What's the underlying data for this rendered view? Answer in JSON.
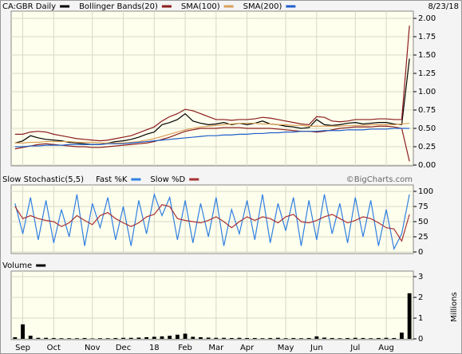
{
  "chart_data": [
    {
      "type": "line",
      "date_label": "8/23/18",
      "series": [
        {
          "name": "CA:GBR Daily",
          "color": "#000000",
          "values": [
            0.3,
            0.33,
            0.4,
            0.37,
            0.35,
            0.34,
            0.33,
            0.31,
            0.3,
            0.29,
            0.28,
            0.28,
            0.3,
            0.32,
            0.33,
            0.35,
            0.38,
            0.42,
            0.45,
            0.55,
            0.58,
            0.62,
            0.7,
            0.6,
            0.57,
            0.55,
            0.56,
            0.58,
            0.55,
            0.57,
            0.55,
            0.57,
            0.6,
            0.56,
            0.55,
            0.53,
            0.52,
            0.5,
            0.51,
            0.62,
            0.55,
            0.54,
            0.55,
            0.57,
            0.58,
            0.56,
            0.57,
            0.58,
            0.58,
            0.56,
            0.55,
            1.45
          ]
        },
        {
          "name": "Bollinger Bands(20)",
          "color": "#8b1c1c",
          "values": [
            0.42,
            0.42,
            0.45,
            0.46,
            0.45,
            0.42,
            0.4,
            0.38,
            0.36,
            0.35,
            0.34,
            0.33,
            0.34,
            0.36,
            0.38,
            0.4,
            0.44,
            0.48,
            0.52,
            0.6,
            0.66,
            0.7,
            0.76,
            0.74,
            0.7,
            0.66,
            0.62,
            0.62,
            0.61,
            0.62,
            0.62,
            0.63,
            0.65,
            0.64,
            0.62,
            0.6,
            0.58,
            0.56,
            0.55,
            0.66,
            0.65,
            0.6,
            0.59,
            0.6,
            0.62,
            0.62,
            0.62,
            0.63,
            0.63,
            0.62,
            0.62,
            1.9
          ],
          "lower": [
            0.22,
            0.24,
            0.26,
            0.28,
            0.29,
            0.28,
            0.27,
            0.26,
            0.25,
            0.25,
            0.24,
            0.24,
            0.25,
            0.26,
            0.27,
            0.28,
            0.29,
            0.3,
            0.32,
            0.35,
            0.38,
            0.42,
            0.46,
            0.48,
            0.5,
            0.5,
            0.5,
            0.51,
            0.51,
            0.51,
            0.5,
            0.5,
            0.5,
            0.5,
            0.49,
            0.48,
            0.47,
            0.46,
            0.46,
            0.45,
            0.46,
            0.48,
            0.5,
            0.51,
            0.52,
            0.52,
            0.52,
            0.53,
            0.53,
            0.52,
            0.5,
            0.05
          ]
        },
        {
          "name": "SMA(100)",
          "color": "#d9a05a",
          "values": [
            0.3,
            0.3,
            0.31,
            0.31,
            0.32,
            0.32,
            0.32,
            0.32,
            0.31,
            0.31,
            0.31,
            0.3,
            0.3,
            0.3,
            0.3,
            0.31,
            0.32,
            0.34,
            0.36,
            0.39,
            0.42,
            0.45,
            0.48,
            0.5,
            0.52,
            0.53,
            0.54,
            0.55,
            0.56,
            0.57,
            0.57,
            0.57,
            0.56,
            0.56,
            0.55,
            0.55,
            0.54,
            0.54,
            0.53,
            0.53,
            0.53,
            0.53,
            0.53,
            0.54,
            0.54,
            0.54,
            0.55,
            0.55,
            0.55,
            0.55,
            0.56,
            0.57
          ]
        },
        {
          "name": "SMA(200)",
          "color": "#1f5fcc",
          "values": [
            0.25,
            0.25,
            0.26,
            0.26,
            0.27,
            0.27,
            0.27,
            0.28,
            0.28,
            0.28,
            0.28,
            0.28,
            0.29,
            0.29,
            0.29,
            0.3,
            0.31,
            0.32,
            0.33,
            0.34,
            0.35,
            0.36,
            0.37,
            0.38,
            0.39,
            0.4,
            0.4,
            0.41,
            0.41,
            0.42,
            0.42,
            0.43,
            0.43,
            0.44,
            0.44,
            0.45,
            0.45,
            0.46,
            0.46,
            0.46,
            0.47,
            0.47,
            0.47,
            0.48,
            0.48,
            0.48,
            0.49,
            0.49,
            0.49,
            0.5,
            0.5,
            0.5
          ]
        }
      ],
      "ylim": [
        0,
        2
      ],
      "yticks": [
        {
          "value": 0,
          "label": "0.00"
        },
        {
          "value": 0.25,
          "label": "0.25"
        },
        {
          "value": 0.5,
          "label": "0.50"
        },
        {
          "value": 0.75,
          "label": "0.75"
        },
        {
          "value": 1,
          "label": "1.00"
        },
        {
          "value": 1.25,
          "label": "1.25"
        },
        {
          "value": 1.5,
          "label": "1.50"
        },
        {
          "value": 1.75,
          "label": "1.75"
        },
        {
          "value": 2,
          "label": "2.00"
        }
      ],
      "grid": true
    },
    {
      "type": "line",
      "title": "Slow Stochastic(5,5)",
      "watermark": "©BigCharts.com",
      "series": [
        {
          "name": "Fast %K",
          "color": "#2f7fe0",
          "values": [
            80,
            30,
            90,
            20,
            85,
            15,
            70,
            25,
            95,
            10,
            80,
            40,
            90,
            20,
            75,
            10,
            85,
            30,
            95,
            60,
            90,
            20,
            85,
            15,
            80,
            25,
            90,
            10,
            70,
            30,
            85,
            20,
            95,
            15,
            80,
            35,
            90,
            10,
            85,
            20,
            95,
            30,
            80,
            15,
            90,
            25,
            85,
            10,
            70,
            5,
            30,
            95
          ]
        },
        {
          "name": "Slow %D",
          "color": "#a83232",
          "values": [
            75,
            55,
            60,
            55,
            52,
            50,
            42,
            48,
            60,
            52,
            45,
            60,
            65,
            55,
            48,
            42,
            48,
            58,
            62,
            78,
            75,
            55,
            52,
            50,
            48,
            52,
            58,
            50,
            40,
            50,
            58,
            52,
            58,
            55,
            48,
            58,
            62,
            50,
            48,
            52,
            58,
            62,
            55,
            48,
            52,
            58,
            55,
            48,
            40,
            38,
            18,
            62
          ]
        }
      ],
      "ylim": [
        0,
        100
      ],
      "yticks": [
        0,
        25,
        50,
        75,
        100
      ],
      "grid": true
    },
    {
      "type": "bar",
      "title": "Volume",
      "y_label": "Millions",
      "color": "#000000",
      "categories": [
        null,
        "Sep",
        null,
        null,
        null,
        "Oct",
        null,
        null,
        null,
        null,
        "Nov",
        null,
        null,
        null,
        "Dec",
        null,
        null,
        null,
        "18",
        null,
        null,
        null,
        "Feb",
        null,
        null,
        null,
        "Mar",
        null,
        null,
        null,
        "Apr",
        null,
        null,
        null,
        null,
        "May",
        null,
        null,
        null,
        "Jun",
        null,
        null,
        null,
        null,
        "Jul",
        null,
        null,
        null,
        "Aug",
        null,
        null,
        null
      ],
      "values": [
        0.08,
        0.7,
        0.15,
        0.05,
        0.05,
        0.04,
        0.03,
        0.03,
        0.03,
        0.04,
        0.02,
        0.03,
        0.03,
        0.04,
        0.05,
        0.05,
        0.06,
        0.08,
        0.1,
        0.12,
        0.15,
        0.2,
        0.25,
        0.1,
        0.08,
        0.06,
        0.05,
        0.05,
        0.04,
        0.05,
        0.04,
        0.04,
        0.03,
        0.04,
        0.05,
        0.03,
        0.04,
        0.03,
        0.04,
        0.12,
        0.06,
        0.04,
        0.03,
        0.04,
        0.05,
        0.04,
        0.03,
        0.04,
        0.05,
        0.04,
        0.3,
        2.2
      ],
      "ylim": [
        0,
        3
      ],
      "yticks": [
        0,
        1,
        2,
        3
      ],
      "grid": true
    }
  ]
}
